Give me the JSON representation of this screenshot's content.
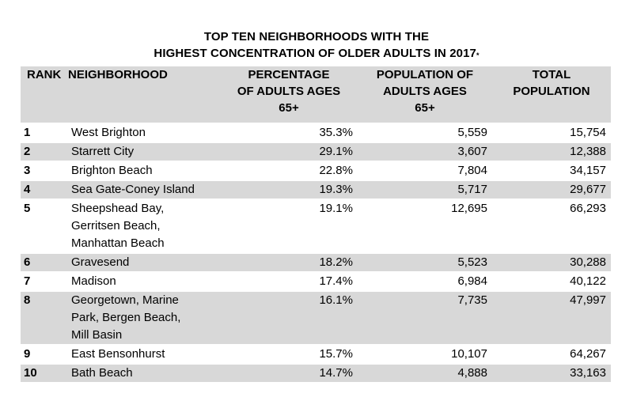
{
  "title": {
    "line1": "TOP TEN NEIGHBORHOODS WITH THE",
    "line2": "HIGHEST CONCENTRATION OF OLDER ADULTS IN 2017",
    "footnote_mark": "*"
  },
  "headers": {
    "rank": "RANK",
    "neighborhood": "NEIGHBORHOOD",
    "pct_line1": "PERCENTAGE",
    "pct_line2": "OF ADULTS AGES",
    "pct_line3": "65+",
    "pop65_line1": "POPULATION OF",
    "pop65_line2": "ADULTS AGES",
    "pop65_line3": "65+",
    "total_line1": "TOTAL",
    "total_line2": "POPULATION"
  },
  "rows": [
    {
      "rank": "1",
      "neighborhood": [
        "West Brighton"
      ],
      "pct": "35.3%",
      "pop65": "5,559",
      "total": "15,754"
    },
    {
      "rank": "2",
      "neighborhood": [
        "Starrett City"
      ],
      "pct": "29.1%",
      "pop65": "3,607",
      "total": "12,388"
    },
    {
      "rank": "3",
      "neighborhood": [
        "Brighton Beach"
      ],
      "pct": "22.8%",
      "pop65": "7,804",
      "total": "34,157"
    },
    {
      "rank": "4",
      "neighborhood": [
        "Sea Gate-Coney Island"
      ],
      "pct": "19.3%",
      "pop65": "5,717",
      "total": "29,677"
    },
    {
      "rank": "5",
      "neighborhood": [
        "Sheepshead Bay,",
        "Gerritsen Beach,",
        "Manhattan Beach"
      ],
      "pct": "19.1%",
      "pop65": "12,695",
      "total": "66,293"
    },
    {
      "rank": "6",
      "neighborhood": [
        "Gravesend"
      ],
      "pct": "18.2%",
      "pop65": "5,523",
      "total": "30,288"
    },
    {
      "rank": "7",
      "neighborhood": [
        "Madison"
      ],
      "pct": "17.4%",
      "pop65": "6,984",
      "total": "40,122"
    },
    {
      "rank": "8",
      "neighborhood": [
        "Georgetown, Marine",
        "Park, Bergen Beach,",
        "Mill Basin"
      ],
      "pct": "16.1%",
      "pop65": "7,735",
      "total": "47,997"
    },
    {
      "rank": "9",
      "neighborhood": [
        "East Bensonhurst"
      ],
      "pct": "15.7%",
      "pop65": "10,107",
      "total": "64,267"
    },
    {
      "rank": "10",
      "neighborhood": [
        "Bath Beach"
      ],
      "pct": "14.7%",
      "pop65": "4,888",
      "total": "33,163"
    }
  ],
  "colors": {
    "shade": "#d8d8d8",
    "background": "#ffffff",
    "text": "#000000"
  }
}
